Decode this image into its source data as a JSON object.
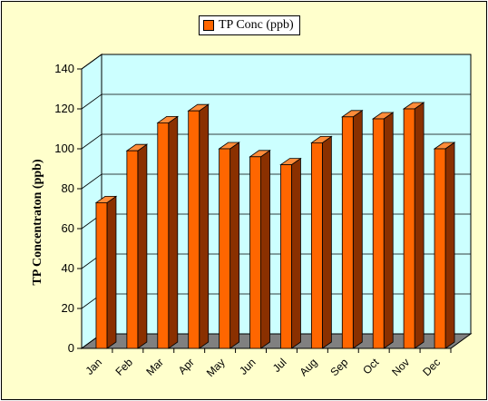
{
  "chart_data": {
    "type": "bar",
    "title": "",
    "xlabel": "",
    "ylabel": "TP Concentraton (ppb)",
    "categories": [
      "Jan",
      "Feb",
      "Mar",
      "Apr",
      "May",
      "Jun",
      "Jul",
      "Aug",
      "Sep",
      "Oct",
      "Nov",
      "Dec"
    ],
    "series": [
      {
        "name": "TP Conc (ppb)",
        "values": [
          73,
          99,
          113,
          119,
          100,
          96,
          92,
          103,
          116,
          115,
          120,
          100
        ]
      }
    ],
    "ylim": [
      0,
      140
    ],
    "yticks": [
      "0",
      "20",
      "40",
      "60",
      "80",
      "100",
      "120",
      "140"
    ],
    "grid": true,
    "legend_position": "top-center",
    "style": "3d-column",
    "colors": {
      "bar_front": "#ff6600",
      "bar_top": "#ff8c3a",
      "bar_side": "#8a3000",
      "plot_background": "#ccffff",
      "chart_background": "#ffffcc",
      "floor": "#808080"
    }
  }
}
